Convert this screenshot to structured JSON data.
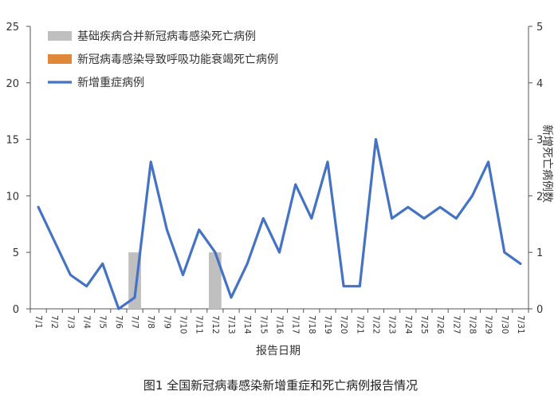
{
  "chart_data": {
    "type": "bar",
    "title": "",
    "xlabel": "报告日期",
    "ylabel": "",
    "y2label": "新增死亡病例数",
    "caption": "图1 全国新冠病毒感染新增重症和死亡病例报告情况",
    "categories": [
      "7/1",
      "7/2",
      "7/3",
      "7/4",
      "7/5",
      "7/6",
      "7/7",
      "7/8",
      "7/9",
      "7/10",
      "7/11",
      "7/12",
      "7/13",
      "7/14",
      "7/15",
      "7/16",
      "7/17",
      "7/18",
      "7/19",
      "7/20",
      "7/21",
      "7/22",
      "7/23",
      "7/24",
      "7/25",
      "7/26",
      "7/27",
      "7/28",
      "7/29",
      "7/30",
      "7/31"
    ],
    "ylim": [
      0,
      25
    ],
    "yticks": [
      0,
      5,
      10,
      15,
      20,
      25
    ],
    "y2lim": [
      0,
      5
    ],
    "y2ticks": [
      0,
      1,
      2,
      3,
      4,
      5
    ],
    "grid": false,
    "legend_position": "top-left",
    "series": [
      {
        "name": "基础疾病合并新冠病毒感染死亡病例",
        "type": "bar",
        "axis": "right",
        "color": "#bfbfbf",
        "values": [
          0,
          0,
          0,
          0,
          0,
          0,
          1,
          0,
          0,
          0,
          0,
          1,
          0,
          0,
          0,
          0,
          0,
          0,
          0,
          0,
          0,
          0,
          0,
          0,
          0,
          0,
          0,
          0,
          0,
          0,
          0
        ]
      },
      {
        "name": "新冠病毒感染导致呼吸功能衰竭死亡病例",
        "type": "bar",
        "axis": "right",
        "color": "#e0873a",
        "values": [
          0,
          0,
          0,
          0,
          0,
          0,
          0,
          0,
          0,
          0,
          0,
          0,
          0,
          0,
          0,
          0,
          0,
          0,
          0,
          0,
          0,
          0,
          0,
          0,
          0,
          0,
          0,
          0,
          0,
          0,
          0
        ]
      },
      {
        "name": "新增重症病例",
        "type": "line",
        "axis": "left",
        "color": "#4472c4",
        "values": [
          9,
          6,
          3,
          2,
          4,
          0,
          1,
          13,
          7,
          3,
          7,
          5,
          1,
          4,
          8,
          5,
          11,
          8,
          13,
          2,
          2,
          15,
          8,
          9,
          8,
          9,
          8,
          10,
          13,
          5,
          4
        ]
      }
    ]
  }
}
